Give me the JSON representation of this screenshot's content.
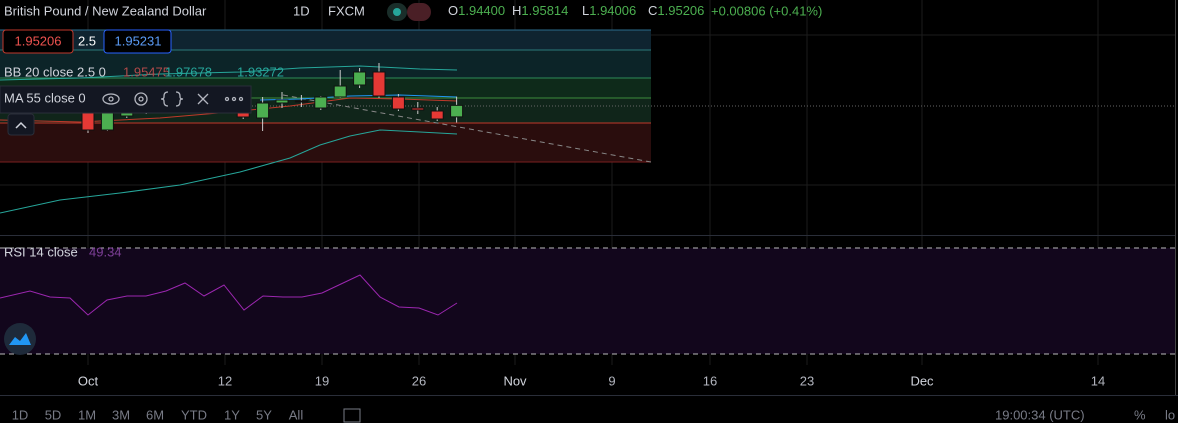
{
  "header": {
    "symbol": "British Pound / New Zealand Dollar",
    "interval": "1D",
    "source": "FXCM",
    "ohlc": [
      {
        "label": "O",
        "value": "1.94400"
      },
      {
        "label": "H",
        "value": "1.95814"
      },
      {
        "label": "L",
        "value": "1.94006"
      },
      {
        "label": "C",
        "value": "1.95206"
      }
    ],
    "change": "+0.00806 (+0.41%)"
  },
  "price_boxes": [
    "1.95206",
    "2.5",
    "1.95231"
  ],
  "indicators": {
    "bb": {
      "label": "BB 20 close 2.5 0",
      "values": [
        "1.95475",
        "1.97678",
        "1.93272"
      ]
    },
    "ma": {
      "label": "MA 55 close 0"
    },
    "rsi": {
      "label": "RSI 14 close",
      "value": "49.34"
    }
  },
  "candles": [
    {
      "open": 1.9488,
      "high": 1.9523,
      "low": 1.93272,
      "close": 1.93482
    },
    {
      "open": 1.93482,
      "high": 1.9502,
      "low": 1.93412,
      "close": 1.94671
    },
    {
      "open": 1.94461,
      "high": 1.9523,
      "low": 1.94321,
      "close": 1.9488
    },
    {
      "open": 1.9474,
      "high": 1.9516,
      "low": 1.94601,
      "close": 1.9502
    },
    {
      "open": 1.9516,
      "high": 1.953,
      "low": 1.9474,
      "close": 1.9488
    },
    {
      "open": 1.9488,
      "high": 1.9537,
      "low": 1.9474,
      "close": 1.9523
    },
    {
      "open": 1.9516,
      "high": 1.9558,
      "low": 1.9502,
      "close": 1.9544
    },
    {
      "open": 1.953,
      "high": 1.9572,
      "low": 1.9516,
      "close": 1.9558
    },
    {
      "open": 1.9537,
      "high": 1.9558,
      "low": 1.94251,
      "close": 1.94391
    },
    {
      "open": 1.94321,
      "high": 1.9579,
      "low": 1.93412,
      "close": 1.9537
    },
    {
      "open": 1.9537,
      "high": 1.96139,
      "low": 1.9502,
      "close": 1.9558
    },
    {
      "open": 1.9551,
      "high": 1.9593,
      "low": 1.9509,
      "close": 1.9544
    },
    {
      "open": 1.9502,
      "high": 1.9586,
      "low": 1.9488,
      "close": 1.9579
    },
    {
      "open": 1.9579,
      "high": 1.97678,
      "low": 1.9572,
      "close": 1.96559
    },
    {
      "open": 1.96629,
      "high": 1.97818,
      "low": 1.96419,
      "close": 1.97538
    },
    {
      "open": 1.97538,
      "high": 1.98168,
      "low": 1.9572,
      "close": 1.9586
    },
    {
      "open": 1.9579,
      "high": 1.96,
      "low": 1.9481,
      "close": 1.9495
    },
    {
      "open": 1.9502,
      "high": 1.9544,
      "low": 1.94601,
      "close": 1.9488
    },
    {
      "open": 1.9481,
      "high": 1.9509,
      "low": 1.94111,
      "close": 1.94251
    },
    {
      "open": 1.944,
      "high": 1.95814,
      "low": 1.94006,
      "close": 1.95206
    }
  ],
  "x_axis": [
    "Oct",
    "12",
    "19",
    "26",
    "Nov",
    "9",
    "16",
    "23",
    "Dec",
    "14"
  ],
  "timeframes": [
    "1D",
    "5D",
    "1M",
    "3M",
    "6M",
    "YTD",
    "1Y",
    "5Y",
    "All"
  ],
  "clock": "19:00:34 (UTC)",
  "toolbar_right": [
    "%",
    "lo"
  ]
}
